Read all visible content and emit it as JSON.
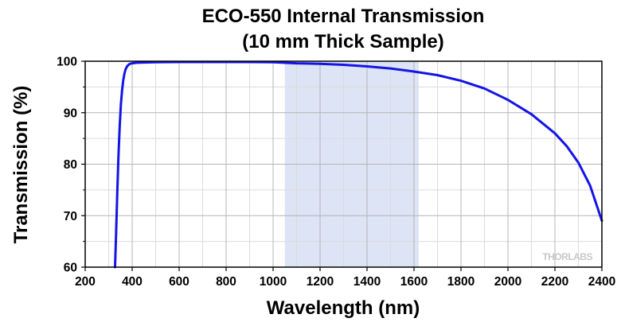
{
  "chart_data": {
    "type": "line",
    "title": "ECO-550 Internal Transmission",
    "subtitle": "(10 mm Thick Sample)",
    "xlabel": "Wavelength (nm)",
    "ylabel": "Transmission (%)",
    "xlim": [
      200,
      2400
    ],
    "ylim": [
      60,
      100
    ],
    "x_ticks": [
      200,
      400,
      600,
      800,
      1000,
      1200,
      1400,
      1600,
      1800,
      2000,
      2200,
      2400
    ],
    "y_ticks": [
      60,
      70,
      80,
      90,
      100
    ],
    "grid": true,
    "legend": "none",
    "highlight_band": {
      "x_start": 1050,
      "x_end": 1620,
      "color": "#dce4f5"
    },
    "line_color": "#1414e6",
    "watermark": "THORLABS",
    "series": [
      {
        "x": [
          327,
          332,
          337,
          342,
          347,
          352,
          357,
          362,
          367,
          372,
          377,
          382,
          387,
          392,
          400,
          420,
          450,
          500,
          600,
          700,
          800,
          900,
          1000,
          1100,
          1200,
          1300,
          1400,
          1500,
          1600,
          1700,
          1800,
          1900,
          2000,
          2100,
          2200,
          2250,
          2300,
          2350,
          2400
        ],
        "y": [
          60.0,
          67.0,
          75.0,
          82.0,
          87.5,
          91.5,
          94.3,
          96.3,
          97.6,
          98.4,
          98.9,
          99.2,
          99.4,
          99.5,
          99.6,
          99.7,
          99.75,
          99.8,
          99.85,
          99.85,
          99.85,
          99.85,
          99.8,
          99.6,
          99.5,
          99.3,
          99.0,
          98.6,
          98.0,
          97.3,
          96.2,
          94.7,
          92.5,
          89.7,
          86.0,
          83.5,
          80.3,
          75.8,
          69.0
        ]
      }
    ]
  }
}
